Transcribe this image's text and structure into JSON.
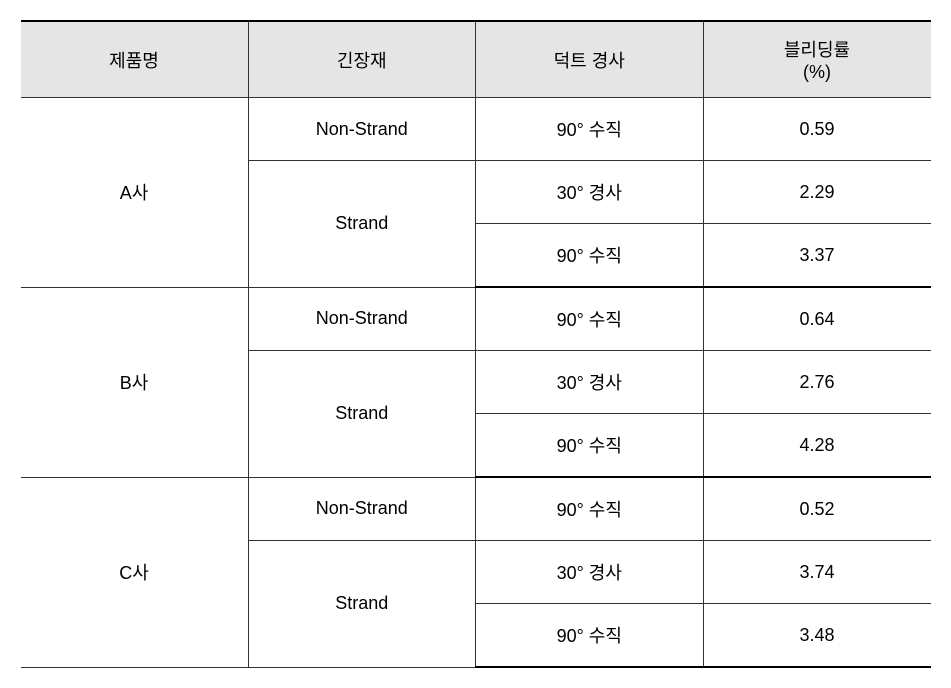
{
  "table": {
    "type": "table",
    "columns": [
      {
        "label": "제품명"
      },
      {
        "label": "긴장재"
      },
      {
        "label": "덕트 경사"
      },
      {
        "label_line1": "블리딩률",
        "label_line2": "(%)"
      }
    ],
    "groups": [
      {
        "product": "A사",
        "rows": [
          {
            "tension": "Non-Strand",
            "tension_rowspan": 1,
            "slope": "90° 수직",
            "bleeding": "0.59"
          },
          {
            "tension": "Strand",
            "tension_rowspan": 2,
            "slope": "30° 경사",
            "bleeding": "2.29"
          },
          {
            "slope": "90° 수직",
            "bleeding": "3.37"
          }
        ]
      },
      {
        "product": "B사",
        "rows": [
          {
            "tension": "Non-Strand",
            "tension_rowspan": 1,
            "slope": "90° 수직",
            "bleeding": "0.64"
          },
          {
            "tension": "Strand",
            "tension_rowspan": 2,
            "slope": "30° 경사",
            "bleeding": "2.76"
          },
          {
            "slope": "90° 수직",
            "bleeding": "4.28"
          }
        ]
      },
      {
        "product": "C사",
        "rows": [
          {
            "tension": "Non-Strand",
            "tension_rowspan": 1,
            "slope": "90° 수직",
            "bleeding": "0.52"
          },
          {
            "tension": "Strand",
            "tension_rowspan": 2,
            "slope": "30° 경사",
            "bleeding": "3.74"
          },
          {
            "slope": "90° 수직",
            "bleeding": "3.48"
          }
        ]
      }
    ],
    "styling": {
      "header_bg": "#e5e5e5",
      "border_color": "#333333",
      "outer_border_color": "#000000",
      "font_size": 18,
      "background_color": "#ffffff",
      "col_widths_pct": [
        25,
        25,
        25,
        25
      ]
    }
  }
}
